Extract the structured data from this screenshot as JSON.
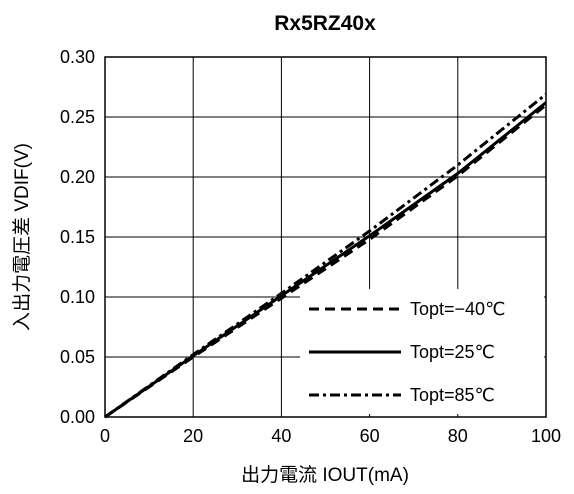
{
  "chart_data": {
    "type": "line",
    "title": "Rx5RZ40x",
    "xlabel": "出力電流 IOUT(mA)",
    "ylabel": "入出力電圧差 VDIF(V)",
    "xlim": [
      0,
      100
    ],
    "ylim": [
      0,
      0.3
    ],
    "x_ticks": [
      0,
      20,
      40,
      60,
      80,
      100
    ],
    "y_ticks": [
      0.0,
      0.05,
      0.1,
      0.15,
      0.2,
      0.25,
      0.3
    ],
    "x_tick_labels": [
      "0",
      "20",
      "40",
      "60",
      "80",
      "100"
    ],
    "y_tick_labels": [
      "0.00",
      "0.05",
      "0.10",
      "0.15",
      "0.20",
      "0.25",
      "0.30"
    ],
    "grid": true,
    "legend_position": "bottom-right",
    "series": [
      {
        "name": "Topt=−40℃",
        "line_style": "dashed",
        "x": [
          0,
          20,
          40,
          60,
          80,
          100
        ],
        "y": [
          0,
          0.05,
          0.099,
          0.148,
          0.201,
          0.26
        ]
      },
      {
        "name": "Topt=25℃",
        "line_style": "solid",
        "x": [
          0,
          20,
          40,
          60,
          80,
          100
        ],
        "y": [
          0,
          0.051,
          0.101,
          0.151,
          0.203,
          0.262
        ]
      },
      {
        "name": "Topt=85℃",
        "line_style": "dashdot",
        "x": [
          0,
          20,
          40,
          60,
          80,
          100
        ],
        "y": [
          0,
          0.052,
          0.103,
          0.155,
          0.21,
          0.269
        ]
      }
    ]
  }
}
